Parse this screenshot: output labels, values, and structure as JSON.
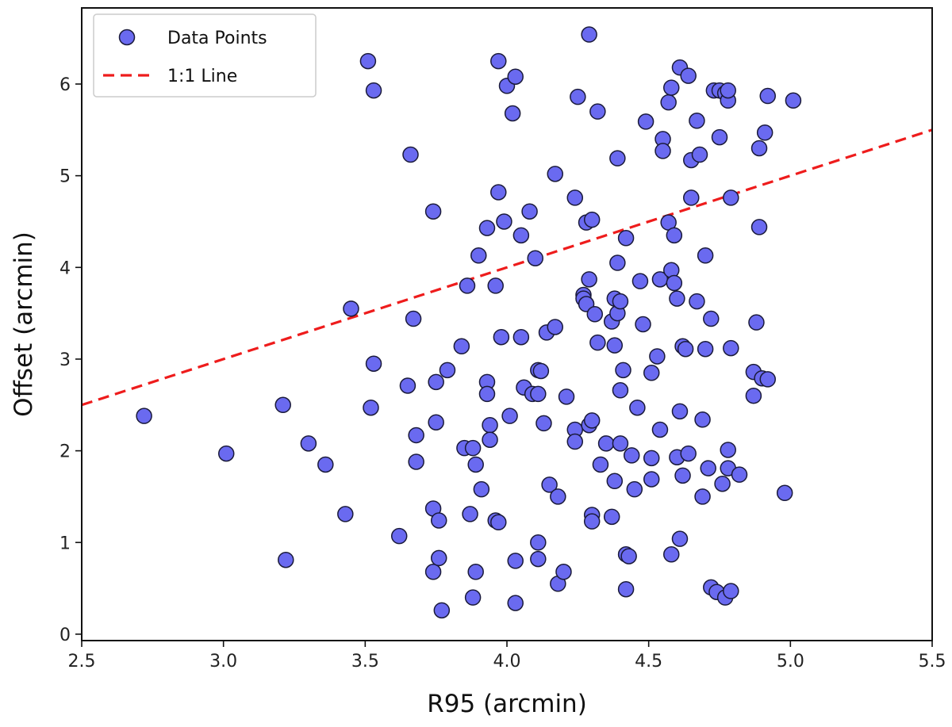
{
  "chart_data": {
    "type": "scatter",
    "title": "",
    "xlabel": "R95 (arcmin)",
    "ylabel": "Offset (arcmin)",
    "xlim": [
      2.5,
      5.5
    ],
    "ylim": [
      -0.07,
      6.83
    ],
    "xticks": [
      "2.5",
      "3.0",
      "3.5",
      "4.0",
      "4.5",
      "5.0",
      "5.5"
    ],
    "yticks": [
      "0",
      "1",
      "2",
      "3",
      "4",
      "5",
      "6"
    ],
    "grid": false,
    "legend_position": "top-left",
    "colors": {
      "points_fill": "#6a6af0",
      "points_edge": "#1a1a3a",
      "line": "#ee1c1c"
    },
    "series": [
      {
        "name": "Data Points",
        "kind": "scatter",
        "points": [
          [
            2.72,
            2.38
          ],
          [
            3.01,
            1.97
          ],
          [
            3.21,
            2.5
          ],
          [
            3.22,
            0.81
          ],
          [
            3.3,
            2.08
          ],
          [
            3.36,
            1.85
          ],
          [
            3.43,
            1.31
          ],
          [
            3.45,
            3.55
          ],
          [
            3.51,
            6.25
          ],
          [
            3.52,
            2.47
          ],
          [
            3.53,
            5.93
          ],
          [
            3.53,
            2.95
          ],
          [
            3.62,
            1.07
          ],
          [
            3.65,
            2.71
          ],
          [
            3.66,
            5.23
          ],
          [
            3.67,
            3.44
          ],
          [
            3.68,
            1.88
          ],
          [
            3.68,
            2.17
          ],
          [
            3.74,
            4.61
          ],
          [
            3.74,
            0.68
          ],
          [
            3.74,
            1.37
          ],
          [
            3.75,
            2.75
          ],
          [
            3.75,
            2.31
          ],
          [
            3.76,
            1.24
          ],
          [
            3.76,
            0.83
          ],
          [
            3.77,
            0.26
          ],
          [
            3.79,
            2.88
          ],
          [
            3.84,
            3.14
          ],
          [
            3.85,
            2.03
          ],
          [
            3.86,
            3.8
          ],
          [
            3.87,
            1.31
          ],
          [
            3.88,
            2.03
          ],
          [
            3.88,
            0.4
          ],
          [
            3.89,
            1.85
          ],
          [
            3.89,
            0.68
          ],
          [
            3.9,
            4.13
          ],
          [
            3.91,
            1.58
          ],
          [
            3.93,
            2.75
          ],
          [
            3.93,
            2.62
          ],
          [
            3.93,
            4.43
          ],
          [
            3.94,
            2.28
          ],
          [
            3.94,
            2.12
          ],
          [
            3.96,
            1.24
          ],
          [
            3.96,
            3.8
          ],
          [
            3.97,
            4.82
          ],
          [
            3.97,
            6.25
          ],
          [
            3.97,
            1.22
          ],
          [
            3.98,
            3.24
          ],
          [
            3.99,
            4.5
          ],
          [
            4.0,
            5.98
          ],
          [
            4.01,
            2.38
          ],
          [
            4.02,
            5.68
          ],
          [
            4.03,
            6.08
          ],
          [
            4.03,
            0.8
          ],
          [
            4.03,
            0.34
          ],
          [
            4.05,
            4.35
          ],
          [
            4.05,
            3.24
          ],
          [
            4.06,
            2.69
          ],
          [
            4.08,
            4.61
          ],
          [
            4.09,
            2.62
          ],
          [
            4.1,
            4.1
          ],
          [
            4.11,
            2.88
          ],
          [
            4.11,
            2.62
          ],
          [
            4.11,
            1.0
          ],
          [
            4.11,
            0.82
          ],
          [
            4.12,
            2.87
          ],
          [
            4.13,
            2.3
          ],
          [
            4.14,
            3.29
          ],
          [
            4.15,
            1.63
          ],
          [
            4.17,
            3.35
          ],
          [
            4.17,
            5.02
          ],
          [
            4.18,
            1.5
          ],
          [
            4.18,
            0.55
          ],
          [
            4.2,
            0.68
          ],
          [
            4.21,
            2.59
          ],
          [
            4.24,
            4.76
          ],
          [
            4.24,
            2.23
          ],
          [
            4.24,
            2.1
          ],
          [
            4.25,
            5.86
          ],
          [
            4.27,
            3.7
          ],
          [
            4.27,
            3.66
          ],
          [
            4.28,
            3.6
          ],
          [
            4.28,
            4.49
          ],
          [
            4.29,
            6.54
          ],
          [
            4.29,
            3.87
          ],
          [
            4.29,
            2.28
          ],
          [
            4.3,
            4.52
          ],
          [
            4.3,
            1.3
          ],
          [
            4.3,
            2.33
          ],
          [
            4.3,
            1.23
          ],
          [
            4.31,
            3.49
          ],
          [
            4.32,
            5.7
          ],
          [
            4.32,
            3.18
          ],
          [
            4.33,
            1.85
          ],
          [
            4.35,
            2.08
          ],
          [
            4.37,
            1.28
          ],
          [
            4.37,
            3.41
          ],
          [
            4.38,
            3.66
          ],
          [
            4.38,
            3.15
          ],
          [
            4.38,
            1.67
          ],
          [
            4.39,
            5.19
          ],
          [
            4.39,
            4.05
          ],
          [
            4.39,
            3.5
          ],
          [
            4.4,
            3.63
          ],
          [
            4.4,
            2.66
          ],
          [
            4.4,
            2.08
          ],
          [
            4.41,
            2.88
          ],
          [
            4.42,
            4.32
          ],
          [
            4.42,
            0.87
          ],
          [
            4.42,
            0.49
          ],
          [
            4.43,
            0.85
          ],
          [
            4.44,
            1.95
          ],
          [
            4.45,
            1.58
          ],
          [
            4.46,
            2.47
          ],
          [
            4.47,
            3.85
          ],
          [
            4.48,
            3.38
          ],
          [
            4.49,
            5.59
          ],
          [
            4.51,
            2.85
          ],
          [
            4.51,
            1.92
          ],
          [
            4.51,
            1.69
          ],
          [
            4.53,
            3.03
          ],
          [
            4.54,
            3.87
          ],
          [
            4.54,
            2.23
          ],
          [
            4.55,
            5.4
          ],
          [
            4.55,
            5.27
          ],
          [
            4.57,
            5.8
          ],
          [
            4.57,
            4.49
          ],
          [
            4.58,
            5.96
          ],
          [
            4.58,
            3.97
          ],
          [
            4.58,
            0.87
          ],
          [
            4.59,
            4.35
          ],
          [
            4.59,
            3.83
          ],
          [
            4.6,
            3.66
          ],
          [
            4.6,
            1.93
          ],
          [
            4.61,
            6.18
          ],
          [
            4.61,
            2.43
          ],
          [
            4.61,
            1.04
          ],
          [
            4.62,
            3.14
          ],
          [
            4.62,
            1.73
          ],
          [
            4.63,
            3.11
          ],
          [
            4.64,
            6.09
          ],
          [
            4.64,
            1.97
          ],
          [
            4.65,
            5.17
          ],
          [
            4.65,
            4.76
          ],
          [
            4.67,
            5.6
          ],
          [
            4.67,
            3.63
          ],
          [
            4.68,
            5.23
          ],
          [
            4.69,
            2.34
          ],
          [
            4.69,
            1.5
          ],
          [
            4.7,
            4.13
          ],
          [
            4.7,
            3.11
          ],
          [
            4.71,
            1.81
          ],
          [
            4.72,
            0.51
          ],
          [
            4.72,
            3.44
          ],
          [
            4.73,
            5.93
          ],
          [
            4.74,
            0.46
          ],
          [
            4.75,
            5.93
          ],
          [
            4.75,
            5.42
          ],
          [
            4.76,
            1.64
          ],
          [
            4.77,
            5.9
          ],
          [
            4.77,
            0.4
          ],
          [
            4.78,
            5.82
          ],
          [
            4.78,
            5.93
          ],
          [
            4.78,
            2.01
          ],
          [
            4.78,
            1.81
          ],
          [
            4.79,
            3.12
          ],
          [
            4.79,
            4.76
          ],
          [
            4.79,
            0.47
          ],
          [
            4.82,
            1.74
          ],
          [
            4.87,
            2.86
          ],
          [
            4.87,
            2.6
          ],
          [
            4.88,
            3.4
          ],
          [
            4.89,
            5.3
          ],
          [
            4.89,
            4.44
          ],
          [
            4.9,
            2.79
          ],
          [
            4.91,
            5.47
          ],
          [
            4.92,
            5.87
          ],
          [
            4.92,
            2.78
          ],
          [
            4.98,
            1.54
          ],
          [
            5.01,
            5.82
          ]
        ]
      },
      {
        "name": "1:1 Line",
        "kind": "line",
        "style": "dashed",
        "points": [
          [
            2.5,
            2.5
          ],
          [
            5.5,
            5.5
          ]
        ]
      }
    ]
  }
}
